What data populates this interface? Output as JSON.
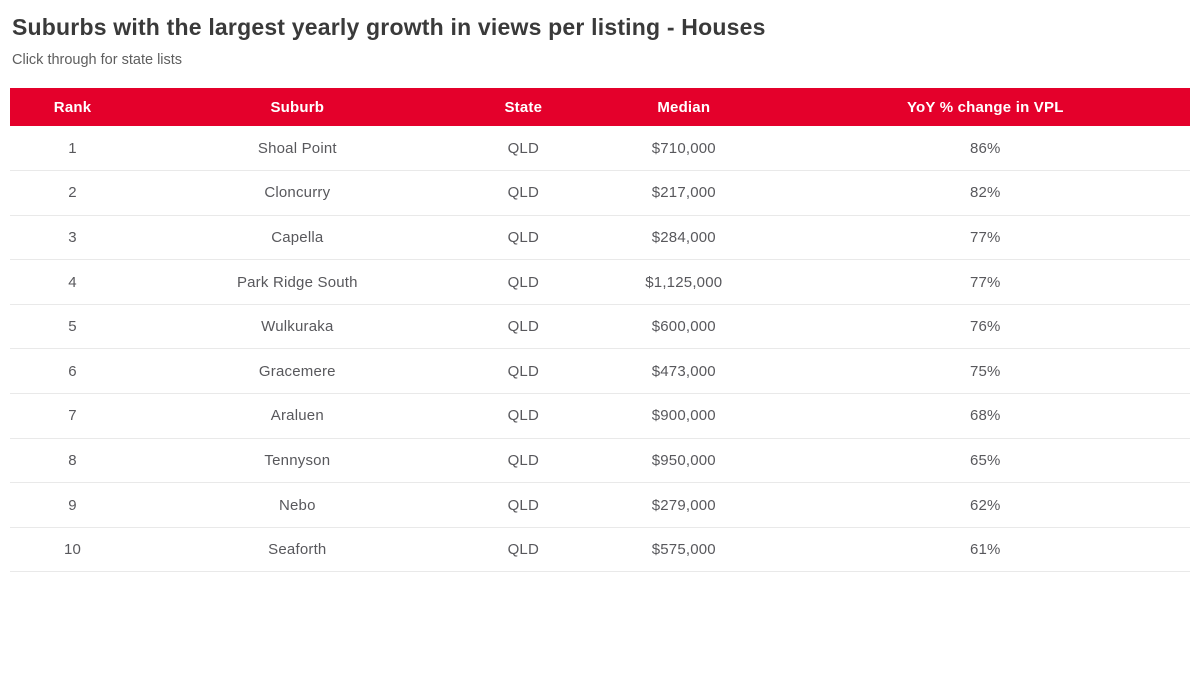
{
  "page": {
    "title": "Suburbs with the largest yearly growth in views per listing - Houses",
    "subtitle": "Click through for state lists"
  },
  "colors": {
    "header_background": "#e4002b",
    "header_text": "#ffffff",
    "title_text": "#3a3a3a",
    "subtitle_text": "#5e5e5e",
    "body_text": "#58585c",
    "row_divider": "#e9e9e9",
    "page_background": "#ffffff"
  },
  "chart_data": {
    "type": "table",
    "title": "Suburbs with the largest yearly growth in views per listing - Houses",
    "subtitle": "Click through for state lists",
    "columns": [
      "Rank",
      "Suburb",
      "State",
      "Median",
      "YoY % change in VPL"
    ],
    "column_keys": [
      "rank",
      "suburb",
      "state",
      "median",
      "yoy_pct_change_vpl"
    ],
    "rows": [
      {
        "rank": "1",
        "suburb": "Shoal Point",
        "state": "QLD",
        "median": "$710,000",
        "yoy_pct_change_vpl": "86%"
      },
      {
        "rank": "2",
        "suburb": "Cloncurry",
        "state": "QLD",
        "median": "$217,000",
        "yoy_pct_change_vpl": "82%"
      },
      {
        "rank": "3",
        "suburb": "Capella",
        "state": "QLD",
        "median": "$284,000",
        "yoy_pct_change_vpl": "77%"
      },
      {
        "rank": "4",
        "suburb": "Park Ridge South",
        "state": "QLD",
        "median": "$1,125,000",
        "yoy_pct_change_vpl": "77%"
      },
      {
        "rank": "5",
        "suburb": "Wulkuraka",
        "state": "QLD",
        "median": "$600,000",
        "yoy_pct_change_vpl": "76%"
      },
      {
        "rank": "6",
        "suburb": "Gracemere",
        "state": "QLD",
        "median": "$473,000",
        "yoy_pct_change_vpl": "75%"
      },
      {
        "rank": "7",
        "suburb": "Araluen",
        "state": "QLD",
        "median": "$900,000",
        "yoy_pct_change_vpl": "68%"
      },
      {
        "rank": "8",
        "suburb": "Tennyson",
        "state": "QLD",
        "median": "$950,000",
        "yoy_pct_change_vpl": "65%"
      },
      {
        "rank": "9",
        "suburb": "Nebo",
        "state": "QLD",
        "median": "$279,000",
        "yoy_pct_change_vpl": "62%"
      },
      {
        "rank": "10",
        "suburb": "Seaforth",
        "state": "QLD",
        "median": "$575,000",
        "yoy_pct_change_vpl": "61%"
      }
    ]
  }
}
